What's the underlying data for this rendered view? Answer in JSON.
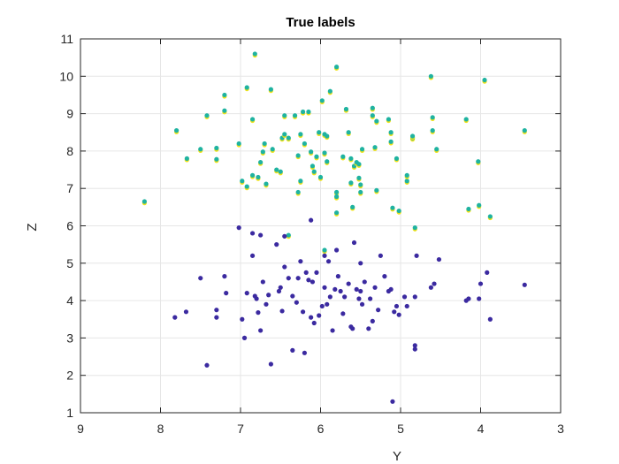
{
  "chart_data": {
    "type": "scatter",
    "title": "True labels",
    "xlabel": "Y",
    "ylabel": "Z",
    "xlim": [
      3,
      9
    ],
    "ylim": [
      1,
      11
    ],
    "x_reversed": true,
    "x_ticks": [
      "9",
      "8",
      "7",
      "6",
      "5",
      "4",
      "3"
    ],
    "y_ticks": [
      "1",
      "2",
      "3",
      "4",
      "5",
      "6",
      "7",
      "8",
      "9",
      "10",
      "11"
    ],
    "grid": true,
    "legend": "none",
    "colors": {
      "class_upper_fill": "#1fb3a0",
      "class_upper_edge": "#f2e318",
      "class_lower": "#3b2aa0",
      "grid": "#e6e6e6",
      "axis": "#262626"
    },
    "series": [
      {
        "values": [
          [
            8.2,
            6.65
          ],
          [
            7.8,
            8.55
          ],
          [
            7.67,
            7.8
          ],
          [
            7.5,
            8.05
          ],
          [
            7.42,
            8.95
          ],
          [
            7.3,
            7.78
          ],
          [
            7.3,
            8.08
          ],
          [
            7.2,
            9.5
          ],
          [
            7.2,
            9.08
          ],
          [
            7.02,
            8.2
          ],
          [
            6.98,
            7.2
          ],
          [
            6.92,
            9.7
          ],
          [
            6.92,
            7.05
          ],
          [
            6.85,
            8.85
          ],
          [
            6.85,
            7.35
          ],
          [
            6.82,
            10.6
          ],
          [
            6.78,
            7.3
          ],
          [
            6.75,
            7.7
          ],
          [
            6.72,
            7.98
          ],
          [
            6.7,
            8.2
          ],
          [
            6.68,
            7.12
          ],
          [
            6.62,
            9.65
          ],
          [
            6.6,
            8.05
          ],
          [
            6.55,
            7.5
          ],
          [
            6.5,
            7.45
          ],
          [
            6.48,
            8.35
          ],
          [
            6.45,
            8.95
          ],
          [
            6.45,
            8.45
          ],
          [
            6.4,
            5.75
          ],
          [
            6.4,
            8.35
          ],
          [
            6.32,
            8.95
          ],
          [
            6.28,
            6.9
          ],
          [
            6.28,
            7.88
          ],
          [
            6.25,
            7.2
          ],
          [
            6.25,
            8.45
          ],
          [
            6.22,
            9.05
          ],
          [
            6.2,
            8.2
          ],
          [
            6.15,
            9.05
          ],
          [
            6.12,
            7.98
          ],
          [
            6.1,
            7.6
          ],
          [
            6.08,
            7.45
          ],
          [
            6.05,
            7.85
          ],
          [
            6.02,
            8.5
          ],
          [
            6.0,
            7.3
          ],
          [
            5.98,
            9.35
          ],
          [
            5.95,
            8.45
          ],
          [
            5.95,
            7.95
          ],
          [
            5.95,
            5.35
          ],
          [
            5.92,
            7.72
          ],
          [
            5.92,
            8.4
          ],
          [
            5.88,
            9.6
          ],
          [
            5.8,
            10.25
          ],
          [
            5.8,
            6.9
          ],
          [
            5.8,
            6.35
          ],
          [
            5.8,
            6.78
          ],
          [
            5.72,
            7.85
          ],
          [
            5.68,
            9.12
          ],
          [
            5.65,
            8.5
          ],
          [
            5.62,
            7.8
          ],
          [
            5.62,
            7.15
          ],
          [
            5.6,
            6.5
          ],
          [
            5.58,
            7.6
          ],
          [
            5.55,
            7.7
          ],
          [
            5.52,
            7.28
          ],
          [
            5.52,
            7.65
          ],
          [
            5.5,
            7.1
          ],
          [
            5.5,
            6.9
          ],
          [
            5.48,
            8.05
          ],
          [
            5.35,
            8.95
          ],
          [
            5.35,
            9.15
          ],
          [
            5.32,
            8.1
          ],
          [
            5.3,
            8.8
          ],
          [
            5.3,
            6.95
          ],
          [
            5.15,
            8.85
          ],
          [
            5.12,
            8.5
          ],
          [
            5.12,
            8.25
          ],
          [
            5.1,
            6.48
          ],
          [
            5.05,
            7.8
          ],
          [
            5.02,
            6.4
          ],
          [
            4.92,
            7.2
          ],
          [
            4.92,
            7.35
          ],
          [
            4.85,
            8.35
          ],
          [
            4.85,
            8.4
          ],
          [
            4.82,
            5.95
          ],
          [
            4.62,
            10.0
          ],
          [
            4.6,
            8.55
          ],
          [
            4.6,
            8.9
          ],
          [
            4.55,
            8.05
          ],
          [
            4.18,
            8.85
          ],
          [
            4.15,
            6.45
          ],
          [
            4.03,
            7.72
          ],
          [
            4.02,
            6.55
          ],
          [
            3.95,
            9.9
          ],
          [
            3.88,
            6.25
          ],
          [
            3.45,
            8.55
          ]
        ]
      },
      {
        "values": [
          [
            7.82,
            3.55
          ],
          [
            7.68,
            3.7
          ],
          [
            7.5,
            4.6
          ],
          [
            7.42,
            2.27
          ],
          [
            7.3,
            3.75
          ],
          [
            7.3,
            3.55
          ],
          [
            7.2,
            4.65
          ],
          [
            7.18,
            4.2
          ],
          [
            7.02,
            5.95
          ],
          [
            6.98,
            3.5
          ],
          [
            6.95,
            3.0
          ],
          [
            6.92,
            4.2
          ],
          [
            6.85,
            5.8
          ],
          [
            6.85,
            5.2
          ],
          [
            6.82,
            4.12
          ],
          [
            6.8,
            4.05
          ],
          [
            6.78,
            3.68
          ],
          [
            6.75,
            3.2
          ],
          [
            6.75,
            5.75
          ],
          [
            6.72,
            4.5
          ],
          [
            6.68,
            3.9
          ],
          [
            6.65,
            4.15
          ],
          [
            6.62,
            2.3
          ],
          [
            6.55,
            5.5
          ],
          [
            6.52,
            4.25
          ],
          [
            6.5,
            4.35
          ],
          [
            6.48,
            3.72
          ],
          [
            6.45,
            4.9
          ],
          [
            6.45,
            5.72
          ],
          [
            6.4,
            4.6
          ],
          [
            6.35,
            4.12
          ],
          [
            6.35,
            2.67
          ],
          [
            6.3,
            3.95
          ],
          [
            6.28,
            4.6
          ],
          [
            6.25,
            5.05
          ],
          [
            6.22,
            3.7
          ],
          [
            6.2,
            2.6
          ],
          [
            6.18,
            4.75
          ],
          [
            6.15,
            4.55
          ],
          [
            6.12,
            6.15
          ],
          [
            6.12,
            3.55
          ],
          [
            6.1,
            4.5
          ],
          [
            6.08,
            3.4
          ],
          [
            6.05,
            4.75
          ],
          [
            6.02,
            3.6
          ],
          [
            5.98,
            3.85
          ],
          [
            5.95,
            4.35
          ],
          [
            5.95,
            5.2
          ],
          [
            5.92,
            3.9
          ],
          [
            5.9,
            5.05
          ],
          [
            5.88,
            4.1
          ],
          [
            5.85,
            3.2
          ],
          [
            5.82,
            4.3
          ],
          [
            5.8,
            5.35
          ],
          [
            5.78,
            4.65
          ],
          [
            5.75,
            4.25
          ],
          [
            5.72,
            3.65
          ],
          [
            5.7,
            4.1
          ],
          [
            5.65,
            4.45
          ],
          [
            5.62,
            3.3
          ],
          [
            5.6,
            3.25
          ],
          [
            5.58,
            5.55
          ],
          [
            5.55,
            4.3
          ],
          [
            5.52,
            4.05
          ],
          [
            5.5,
            4.25
          ],
          [
            5.5,
            5.0
          ],
          [
            5.48,
            3.9
          ],
          [
            5.45,
            4.5
          ],
          [
            5.4,
            3.25
          ],
          [
            5.38,
            4.05
          ],
          [
            5.35,
            3.45
          ],
          [
            5.32,
            4.35
          ],
          [
            5.28,
            3.75
          ],
          [
            5.25,
            5.2
          ],
          [
            5.2,
            4.65
          ],
          [
            5.15,
            4.25
          ],
          [
            5.12,
            4.3
          ],
          [
            5.1,
            1.3
          ],
          [
            5.08,
            3.7
          ],
          [
            5.05,
            3.85
          ],
          [
            5.02,
            3.62
          ],
          [
            4.95,
            4.1
          ],
          [
            4.92,
            3.85
          ],
          [
            4.82,
            2.8
          ],
          [
            4.82,
            2.7
          ],
          [
            4.82,
            4.1
          ],
          [
            4.8,
            5.2
          ],
          [
            4.62,
            4.35
          ],
          [
            4.58,
            4.45
          ],
          [
            4.52,
            5.1
          ],
          [
            4.18,
            4.0
          ],
          [
            4.15,
            4.05
          ],
          [
            4.02,
            4.05
          ],
          [
            4.0,
            4.45
          ],
          [
            3.92,
            4.75
          ],
          [
            3.88,
            3.5
          ],
          [
            3.45,
            4.42
          ]
        ]
      }
    ]
  }
}
